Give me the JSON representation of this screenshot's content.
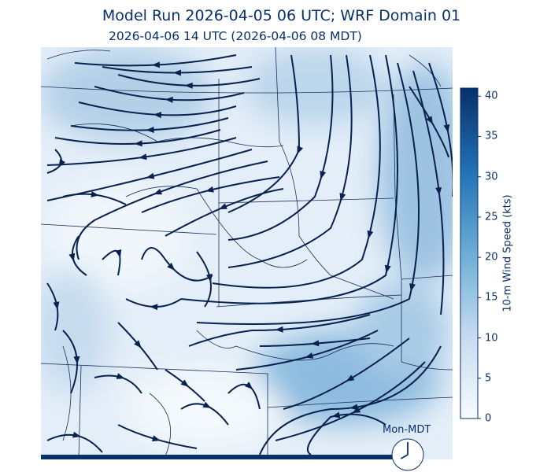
{
  "title": "Model Run 2026-04-05 06 UTC; WRF Domain 01",
  "subtitle": "2026-04-06 14 UTC  (2026-04-06 08 MDT)",
  "colorbar": {
    "label": "10-m Wind Speed (kts)",
    "min": 0,
    "max": 41,
    "ticks": [
      "0",
      "5",
      "10",
      "15",
      "20",
      "25",
      "30",
      "35",
      "40"
    ],
    "colormap": "Blues",
    "colors": [
      "#f7fbff",
      "#c6dbef",
      "#6baed6",
      "#2171b5",
      "#08306b"
    ]
  },
  "map": {
    "field": "10-m wind speed with streamlines",
    "streamline_color": "#08214f"
  },
  "clock": {
    "label": "Mon-MDT",
    "hour": 8,
    "minute": 0
  },
  "colors": {
    "text": "#08306b"
  }
}
